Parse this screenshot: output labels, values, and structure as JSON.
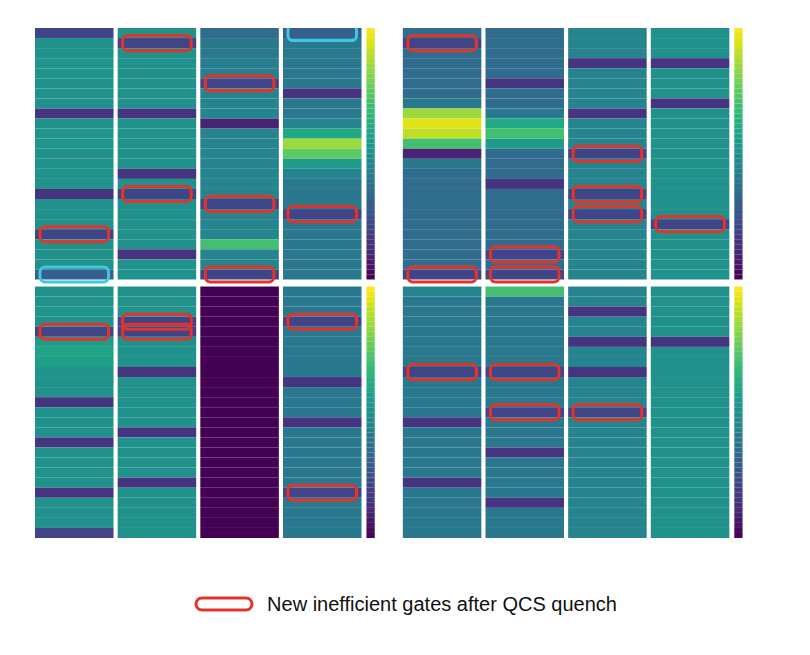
{
  "chart_data": {
    "type": "heatmap",
    "tick_labels": false,
    "legend": "bottom",
    "color_range": [
      0,
      1
    ],
    "panels": [
      {
        "top": [
          0.2,
          0.5,
          0.5,
          0.52,
          0.52,
          0.5,
          0.5,
          0.5,
          0.15,
          0.5,
          0.52,
          0.52,
          0.5,
          0.5,
          0.5,
          0.5,
          0.15,
          0.5,
          0.5,
          0.5,
          0.2,
          0.5,
          0.5,
          0.5,
          0.3
        ],
        "bottom": [
          0.5,
          0.5,
          0.52,
          0.5,
          0.2,
          0.55,
          0.58,
          0.56,
          0.52,
          0.5,
          0.5,
          0.15,
          0.5,
          0.5,
          0.5,
          0.15,
          0.5,
          0.5,
          0.5,
          0.5,
          0.15,
          0.5,
          0.5,
          0.5,
          0.2
        ]
      },
      {
        "top": [
          0.5,
          0.2,
          0.5,
          0.5,
          0.5,
          0.5,
          0.5,
          0.5,
          0.15,
          0.5,
          0.5,
          0.5,
          0.5,
          0.5,
          0.15,
          0.5,
          0.2,
          0.5,
          0.5,
          0.5,
          0.5,
          0.5,
          0.15,
          0.5,
          0.5
        ],
        "bottom": [
          0.5,
          0.5,
          0.5,
          0.2,
          0.2,
          0.5,
          0.5,
          0.5,
          0.15,
          0.5,
          0.5,
          0.5,
          0.5,
          0.5,
          0.15,
          0.5,
          0.5,
          0.5,
          0.5,
          0.15,
          0.5,
          0.5,
          0.5,
          0.5,
          0.5
        ]
      },
      {
        "top": [
          0.35,
          0.4,
          0.4,
          0.42,
          0.42,
          0.2,
          0.45,
          0.45,
          0.45,
          0.1,
          0.45,
          0.45,
          0.45,
          0.45,
          0.45,
          0.45,
          0.45,
          0.2,
          0.45,
          0.45,
          0.45,
          0.7,
          0.45,
          0.45,
          0.2
        ],
        "bottom": [
          0,
          0,
          0,
          0,
          0,
          0,
          0,
          0,
          0,
          0,
          0,
          0,
          0,
          0,
          0,
          0,
          0,
          0,
          0,
          0,
          0,
          0,
          0,
          0,
          0
        ]
      },
      {
        "top": [
          0.3,
          0.4,
          0.4,
          0.4,
          0.4,
          0.4,
          0.15,
          0.4,
          0.4,
          0.45,
          0.6,
          0.85,
          0.75,
          0.55,
          0.45,
          0.4,
          0.4,
          0.4,
          0.2,
          0.4,
          0.4,
          0.4,
          0.4,
          0.4,
          0.4
        ],
        "bottom": [
          0.4,
          0.4,
          0.4,
          0.2,
          0.4,
          0.4,
          0.4,
          0.4,
          0.4,
          0.15,
          0.4,
          0.4,
          0.4,
          0.15,
          0.4,
          0.4,
          0.4,
          0.4,
          0.4,
          0.4,
          0.2,
          0.4,
          0.4,
          0.4,
          0.4
        ]
      },
      {
        "top": [
          0.35,
          0.2,
          0.35,
          0.35,
          0.35,
          0.35,
          0.35,
          0.4,
          0.85,
          0.95,
          0.9,
          0.7,
          0.1,
          0.4,
          0.35,
          0.35,
          0.35,
          0.35,
          0.35,
          0.35,
          0.35,
          0.35,
          0.35,
          0.35,
          0.2
        ],
        "bottom": [
          0.45,
          0.4,
          0.4,
          0.4,
          0.4,
          0.4,
          0.4,
          0.4,
          0.2,
          0.4,
          0.4,
          0.4,
          0.4,
          0.15,
          0.4,
          0.4,
          0.4,
          0.4,
          0.4,
          0.15,
          0.4,
          0.4,
          0.4,
          0.4,
          0.4
        ]
      },
      {
        "top": [
          0.35,
          0.35,
          0.35,
          0.35,
          0.35,
          0.15,
          0.35,
          0.35,
          0.4,
          0.6,
          0.7,
          0.55,
          0.35,
          0.35,
          0.35,
          0.15,
          0.35,
          0.35,
          0.35,
          0.35,
          0.35,
          0.35,
          0.2,
          0.35,
          0.2
        ],
        "bottom": [
          0.7,
          0.4,
          0.4,
          0.4,
          0.4,
          0.4,
          0.4,
          0.4,
          0.2,
          0.4,
          0.4,
          0.4,
          0.2,
          0.4,
          0.4,
          0.4,
          0.15,
          0.4,
          0.4,
          0.4,
          0.4,
          0.15,
          0.4,
          0.4,
          0.4
        ]
      },
      {
        "top": [
          0.45,
          0.45,
          0.45,
          0.15,
          0.45,
          0.45,
          0.45,
          0.45,
          0.15,
          0.45,
          0.45,
          0.45,
          0.2,
          0.45,
          0.45,
          0.45,
          0.2,
          0.45,
          0.2,
          0.45,
          0.45,
          0.45,
          0.45,
          0.45,
          0.45
        ],
        "bottom": [
          0.45,
          0.45,
          0.15,
          0.45,
          0.45,
          0.15,
          0.45,
          0.45,
          0.15,
          0.45,
          0.45,
          0.45,
          0.2,
          0.45,
          0.45,
          0.45,
          0.45,
          0.45,
          0.45,
          0.45,
          0.45,
          0.45,
          0.45,
          0.45,
          0.45
        ]
      },
      {
        "top": [
          0.5,
          0.5,
          0.5,
          0.15,
          0.5,
          0.5,
          0.5,
          0.15,
          0.5,
          0.5,
          0.5,
          0.5,
          0.5,
          0.5,
          0.5,
          0.5,
          0.5,
          0.5,
          0.5,
          0.2,
          0.5,
          0.5,
          0.5,
          0.5,
          0.5
        ],
        "bottom": [
          0.5,
          0.5,
          0.5,
          0.5,
          0.5,
          0.15,
          0.5,
          0.5,
          0.5,
          0.5,
          0.5,
          0.5,
          0.5,
          0.5,
          0.5,
          0.5,
          0.5,
          0.5,
          0.5,
          0.5,
          0.5,
          0.5,
          0.5,
          0.5,
          0.5
        ]
      }
    ],
    "series": [
      {
        "name": "New inefficient gates after QCS quench",
        "color": "#e3342a",
        "gates": [
          [
            20,
            29
          ],
          [
            1,
            16,
            28,
            29
          ],
          [
            5,
            17,
            24
          ],
          [
            18,
            28,
            45
          ],
          [
            1,
            24,
            33
          ],
          [
            22,
            24,
            33,
            37
          ],
          [
            12,
            16,
            18,
            37
          ],
          [
            19
          ]
        ]
      },
      {
        "color": "#3fc8e0",
        "gates": [
          [
            24
          ],
          [],
          [],
          [
            0
          ],
          [],
          [],
          [],
          []
        ]
      }
    ]
  }
}
